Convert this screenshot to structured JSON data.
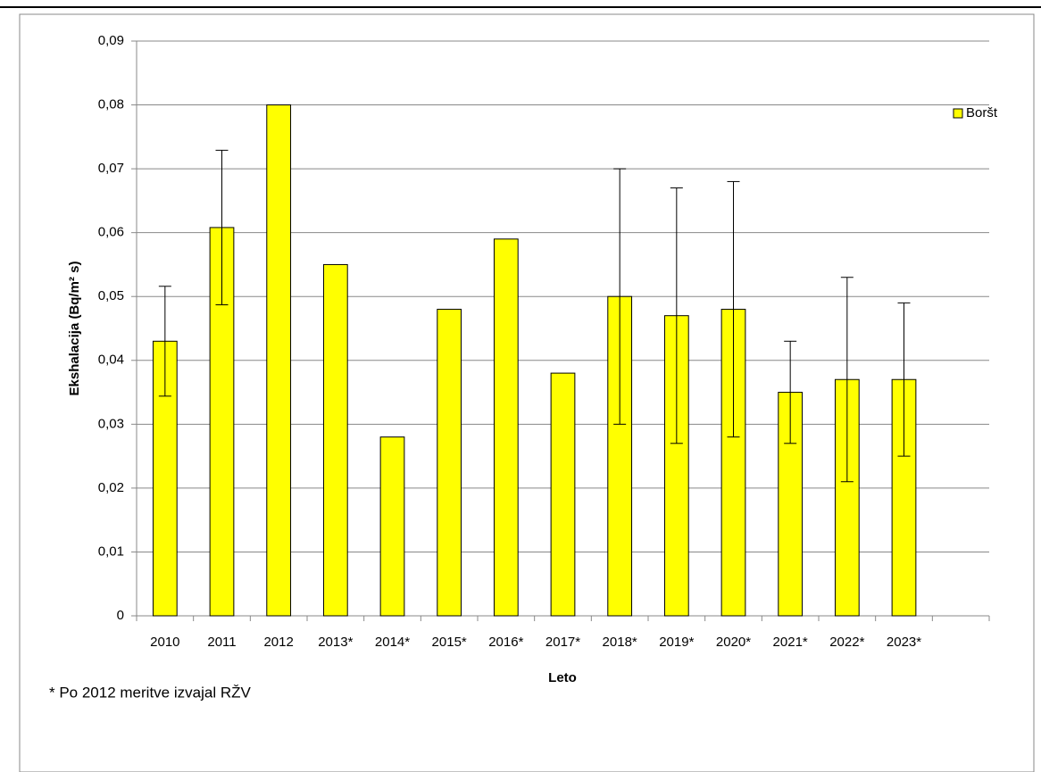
{
  "chart_data": {
    "type": "bar",
    "y_label": "Ekshalacija (Bq/m² s)",
    "x_label": "Leto",
    "note": "* Po 2012 meritve izvajal RŽV",
    "categories": [
      "2010",
      "2011",
      "2012",
      "2013*",
      "2014*",
      "2015*",
      "2016*",
      "2017*",
      "2018*",
      "2019*",
      "2020*",
      "2021*",
      "2022*",
      "2023*",
      null
    ],
    "series": [
      {
        "name": "Boršt",
        "color": "#ffff00",
        "values": [
          0.043,
          0.0608,
          0.08,
          0.055,
          0.028,
          0.048,
          0.059,
          0.038,
          0.05,
          0.047,
          0.048,
          0.035,
          0.037,
          0.037,
          null
        ],
        "errors": [
          0.0086,
          0.0121,
          null,
          null,
          null,
          null,
          null,
          null,
          0.02,
          0.02,
          0.02,
          0.008,
          0.016,
          0.012,
          null
        ]
      }
    ],
    "ylim": [
      0,
      0.09
    ],
    "yticks": [
      0,
      {
        "value": 0.01,
        "label": "0,01"
      },
      {
        "value": 0.02,
        "label": "0,02"
      },
      {
        "value": 0.03,
        "label": "0,03"
      },
      {
        "value": 0.04,
        "label": "0,04"
      },
      {
        "value": 0.05,
        "label": "0,05"
      },
      {
        "value": 0.06,
        "label": "0,06"
      },
      {
        "value": 0.07,
        "label": "0,07"
      },
      {
        "value": 0.08,
        "label": "0,08"
      },
      {
        "value": 0.09,
        "label": "0,09"
      }
    ],
    "grid": true,
    "legend": "right"
  }
}
